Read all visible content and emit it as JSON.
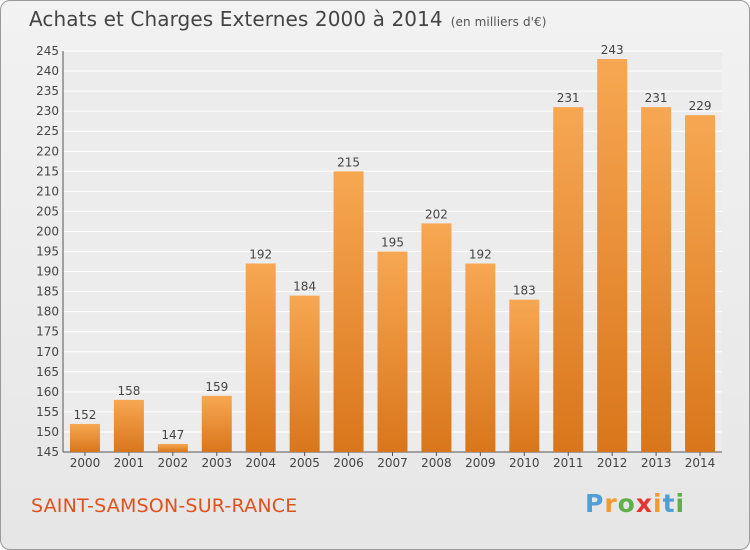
{
  "title": "Achats et Charges Externes 2000 à 2014",
  "unit": "(en milliers d'€)",
  "location": "SAINT-SAMSON-SUR-RANCE",
  "logo": {
    "letters": [
      "P",
      "r",
      "o",
      "x",
      "i",
      "t",
      "i"
    ],
    "colors": [
      "#4f9fd6",
      "#f29a2e",
      "#5db04a",
      "#e4342f",
      "#f29a2e",
      "#4f9fd6",
      "#5db04a"
    ]
  },
  "colors": {
    "bar_light": "#f7a450",
    "bar_dark": "#db7a1e",
    "accent": "#e0521d"
  },
  "chart_data": {
    "type": "bar",
    "title": "Achats et Charges Externes 2000 à 2014",
    "xlabel": "",
    "ylabel": "",
    "categories": [
      "2000",
      "2001",
      "2002",
      "2003",
      "2004",
      "2005",
      "2006",
      "2007",
      "2008",
      "2009",
      "2010",
      "2011",
      "2012",
      "2013",
      "2014"
    ],
    "values": [
      152,
      158,
      147,
      159,
      192,
      184,
      215,
      195,
      202,
      192,
      183,
      231,
      243,
      231,
      229
    ],
    "ylim": [
      145,
      245
    ],
    "yticks": [
      145,
      150,
      155,
      160,
      165,
      170,
      175,
      180,
      185,
      190,
      195,
      200,
      205,
      210,
      215,
      220,
      225,
      230,
      235,
      240,
      245
    ],
    "grid": true,
    "legend": "none"
  }
}
